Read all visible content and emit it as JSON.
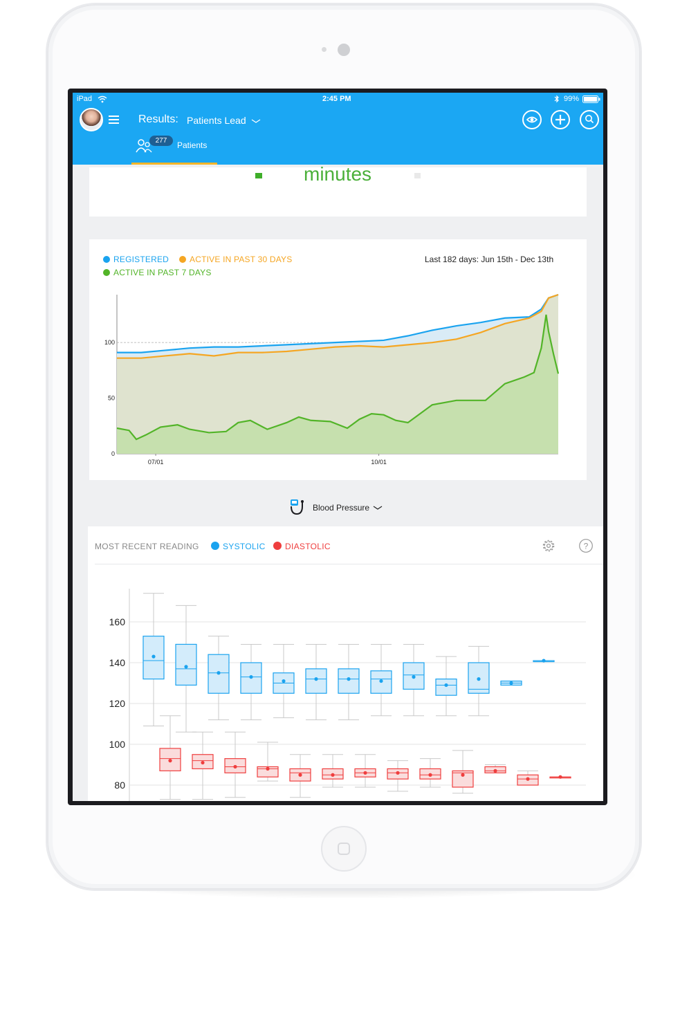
{
  "status_bar": {
    "carrier": "iPad",
    "time": "2:45 PM",
    "battery": "99%"
  },
  "header": {
    "title": "Results:",
    "filter": "Patients Lead",
    "tab": {
      "badge": "277",
      "label": "Patients"
    }
  },
  "card_top": {
    "partial_text": "minutes"
  },
  "chart_activity": {
    "legend": [
      "REGISTERED",
      "ACTIVE IN PAST 30 DAYS",
      "ACTIVE IN PAST 7 DAYS"
    ],
    "range_text": "Last 182 days: Jun 15th - Dec 13th",
    "colors": {
      "registered": "#1aa3ef",
      "active30": "#f5a623",
      "active7": "#52b428"
    }
  },
  "metric_selector": {
    "label": "Blood Pressure"
  },
  "bp_card": {
    "title": "MOST RECENT READING",
    "legend": [
      "SYSTOLIC",
      "DIASTOLIC"
    ],
    "colors": {
      "systolic": "#1aa3ef",
      "diastolic": "#ef3e3e"
    }
  },
  "chart_data": [
    {
      "type": "area",
      "title": "",
      "x_tick_labels": [
        "07/01",
        "10/01"
      ],
      "y_tick_labels": [
        "0",
        "50",
        "100"
      ],
      "ylim": [
        0,
        143
      ],
      "xlim": [
        0,
        182
      ],
      "grid": true,
      "legend_placement": "top-left",
      "series": [
        {
          "name": "REGISTERED",
          "x": [
            0,
            10,
            20,
            30,
            40,
            50,
            60,
            70,
            80,
            90,
            100,
            110,
            120,
            130,
            140,
            150,
            160,
            170,
            175,
            178,
            182
          ],
          "values": [
            91,
            91,
            93,
            95,
            96,
            96,
            97,
            98,
            99,
            100,
            101,
            102,
            106,
            111,
            115,
            118,
            122,
            123,
            130,
            140,
            143
          ]
        },
        {
          "name": "ACTIVE IN PAST 30 DAYS",
          "x": [
            0,
            10,
            20,
            30,
            40,
            50,
            60,
            70,
            80,
            90,
            100,
            110,
            120,
            130,
            140,
            150,
            160,
            170,
            175,
            178,
            182
          ],
          "values": [
            86,
            86,
            88,
            90,
            88,
            91,
            91,
            92,
            94,
            96,
            97,
            96,
            98,
            100,
            103,
            109,
            117,
            122,
            128,
            140,
            143
          ]
        },
        {
          "name": "ACTIVE IN PAST 7 DAYS",
          "x": [
            0,
            5,
            8,
            12,
            18,
            25,
            30,
            38,
            45,
            50,
            55,
            62,
            70,
            75,
            80,
            88,
            95,
            100,
            105,
            110,
            115,
            120,
            125,
            130,
            140,
            145,
            152,
            160,
            168,
            172,
            175,
            177,
            178,
            180,
            182
          ],
          "values": [
            23,
            21,
            13,
            17,
            24,
            26,
            22,
            19,
            20,
            28,
            30,
            22,
            28,
            33,
            30,
            29,
            23,
            31,
            36,
            35,
            30,
            28,
            36,
            44,
            48,
            48,
            48,
            63,
            69,
            73,
            95,
            125,
            110,
            90,
            72
          ]
        }
      ]
    },
    {
      "type": "box",
      "title": "",
      "y_tick_labels": [
        "80",
        "100",
        "120",
        "140",
        "160"
      ],
      "ylim": [
        75,
        175
      ],
      "grid": true,
      "legend_placement": "top-left",
      "series": [
        {
          "name": "SYSTOLIC",
          "boxes": [
            {
              "min": 109,
              "q1": 132,
              "median": 141,
              "q3": 153,
              "max": 174,
              "mean": 143
            },
            {
              "min": 106,
              "q1": 129,
              "median": 137,
              "q3": 149,
              "max": 168,
              "mean": 138
            },
            {
              "min": 112,
              "q1": 125,
              "median": 135,
              "q3": 144,
              "max": 153,
              "mean": 135
            },
            {
              "min": 112,
              "q1": 125,
              "median": 133,
              "q3": 140,
              "max": 149,
              "mean": 133
            },
            {
              "min": 113,
              "q1": 125,
              "median": 130,
              "q3": 135,
              "max": 149,
              "mean": 131
            },
            {
              "min": 112,
              "q1": 125,
              "median": 132,
              "q3": 137,
              "max": 149,
              "mean": 132
            },
            {
              "min": 112,
              "q1": 125,
              "median": 132,
              "q3": 137,
              "max": 149,
              "mean": 132
            },
            {
              "min": 114,
              "q1": 125,
              "median": 132,
              "q3": 136,
              "max": 149,
              "mean": 131
            },
            {
              "min": 114,
              "q1": 127,
              "median": 134,
              "q3": 140,
              "max": 149,
              "mean": 133
            },
            {
              "min": 114,
              "q1": 124,
              "median": 129,
              "q3": 132,
              "max": 143,
              "mean": 129
            },
            {
              "min": 114,
              "q1": 125,
              "median": 127,
              "q3": 140,
              "max": 148,
              "mean": 132
            },
            {
              "min": 129,
              "q1": 129,
              "median": 130,
              "q3": 131,
              "max": 131,
              "mean": 130
            },
            {
              "min": 141,
              "q1": 141,
              "median": 141,
              "q3": 141,
              "max": 141,
              "mean": 141
            }
          ]
        },
        {
          "name": "DIASTOLIC",
          "boxes": [
            {
              "min": 73,
              "q1": 87,
              "median": 93,
              "q3": 98,
              "max": 114,
              "mean": 92
            },
            {
              "min": 73,
              "q1": 88,
              "median": 92,
              "q3": 95,
              "max": 106,
              "mean": 91
            },
            {
              "min": 74,
              "q1": 86,
              "median": 89,
              "q3": 93,
              "max": 106,
              "mean": 89
            },
            {
              "min": 82,
              "q1": 84,
              "median": 88,
              "q3": 89,
              "max": 101,
              "mean": 88
            },
            {
              "min": 74,
              "q1": 82,
              "median": 86,
              "q3": 88,
              "max": 95,
              "mean": 85
            },
            {
              "min": 79,
              "q1": 83,
              "median": 85,
              "q3": 88,
              "max": 95,
              "mean": 85
            },
            {
              "min": 79,
              "q1": 84,
              "median": 86,
              "q3": 88,
              "max": 95,
              "mean": 86
            },
            {
              "min": 77,
              "q1": 83,
              "median": 86,
              "q3": 88,
              "max": 92,
              "mean": 86
            },
            {
              "min": 79,
              "q1": 83,
              "median": 85,
              "q3": 88,
              "max": 93,
              "mean": 85
            },
            {
              "min": 76,
              "q1": 79,
              "median": 86,
              "q3": 87,
              "max": 97,
              "mean": 85
            },
            {
              "min": 86,
              "q1": 86,
              "median": 87,
              "q3": 89,
              "max": 90,
              "mean": 87
            },
            {
              "min": 80,
              "q1": 80,
              "median": 83,
              "q3": 85,
              "max": 87,
              "mean": 83
            },
            {
              "min": 84,
              "q1": 84,
              "median": 84,
              "q3": 84,
              "max": 84,
              "mean": 84
            }
          ]
        }
      ]
    }
  ]
}
